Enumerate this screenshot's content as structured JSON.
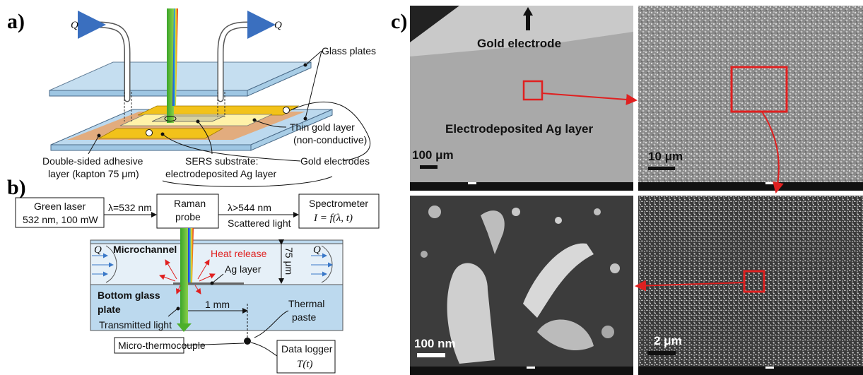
{
  "panels": {
    "a": "a)",
    "b": "b)",
    "c": "c)"
  },
  "a": {
    "flow_in": "Q",
    "flow_out": "Q",
    "glass_plates": "Glass plates",
    "thin_gold_1": "Thin gold layer",
    "thin_gold_2": "(non-conductive)",
    "gold_electrodes": "Gold electrodes",
    "adhesive_1": "Double-sided adhesive",
    "adhesive_2": "layer (kapton 75 μm)",
    "sers_1": "SERS substrate:",
    "sers_2": "electrodeposited Ag layer"
  },
  "b": {
    "laser_1": "Green laser",
    "laser_2": "532 nm, 100 mW",
    "lambda_in": "λ=532 nm",
    "raman_1": "Raman",
    "raman_2": "probe",
    "lambda_out": "λ>544 nm",
    "scattered": "Scattered light",
    "spectrometer": "Spectrometer",
    "spectro_fn": "I = f(λ, t)",
    "microchannel": "Microchannel",
    "heat": "Heat release",
    "ag_layer": "Ag layer",
    "depth": "75 μm",
    "q_left": "Q",
    "q_right": "Q",
    "bottom_1": "Bottom glass",
    "bottom_2": "plate",
    "distance": "1 mm",
    "thermal_1": "Thermal",
    "thermal_2": "paste",
    "transmitted": "Transmitted light",
    "thermocouple": "Micro-thermocouple",
    "logger_1": "Data logger",
    "logger_2": "T(t)"
  },
  "c": {
    "gold_electrode": "Gold electrode",
    "ag_layer": "Electrodeposited Ag layer",
    "scale_1": "100 μm",
    "scale_2": "10 μm",
    "scale_3": "100 nm",
    "scale_4": "2 μm"
  },
  "colors": {
    "laser": "#4caf2a",
    "gold": "#f2c21a",
    "adhesive": "#e9a36a",
    "glass": "#bcd9ee",
    "zoom": "#e02020"
  }
}
